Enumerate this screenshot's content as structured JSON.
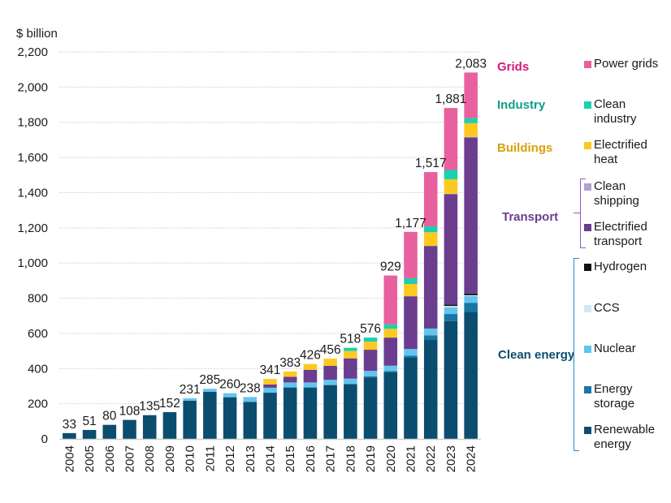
{
  "chart_data": {
    "type": "bar",
    "stacked": true,
    "title": "",
    "ylabel": "$ billion",
    "xlabel": "",
    "ylim": [
      0,
      2200
    ],
    "yticks": [
      0,
      200,
      400,
      600,
      800,
      1000,
      1200,
      1400,
      1600,
      1800,
      2000,
      2200
    ],
    "ytick_labels": [
      "0",
      "200",
      "400",
      "600",
      "800",
      "1,000",
      "1,200",
      "1,400",
      "1,600",
      "1,800",
      "2,000",
      "2,200"
    ],
    "grid": true,
    "legend_position": "right",
    "categories": [
      "2004",
      "2005",
      "2006",
      "2007",
      "2008",
      "2009",
      "2010",
      "2011",
      "2012",
      "2013",
      "2014",
      "2015",
      "2016",
      "2017",
      "2018",
      "2019",
      "2020",
      "2021",
      "2022",
      "2023",
      "2024"
    ],
    "totals": [
      33,
      51,
      80,
      108,
      135,
      152,
      231,
      285,
      260,
      238,
      341,
      383,
      426,
      456,
      518,
      576,
      929,
      1177,
      1517,
      1881,
      2083
    ],
    "total_labels": [
      "33",
      "51",
      "80",
      "108",
      "135",
      "152",
      "231",
      "285",
      "260",
      "238",
      "341",
      "383",
      "426",
      "456",
      "518",
      "576",
      "929",
      "1,177",
      "1,517",
      "1,881",
      "2,083"
    ],
    "series": [
      {
        "name": "Renewable energy",
        "group": "Clean energy",
        "color": "#0b4d6e",
        "values": [
          33,
          51,
          80,
          108,
          135,
          152,
          217,
          268,
          237,
          210,
          263,
          291,
          291,
          305,
          309,
          350,
          378,
          463,
          566,
          670,
          722
        ]
      },
      {
        "name": "Energy storage",
        "group": "Clean energy",
        "color": "#1478a3",
        "values": [
          0,
          0,
          0,
          0,
          0,
          0,
          0,
          0,
          0,
          0,
          1,
          2,
          2,
          3,
          4,
          5,
          8,
          10,
          22,
          40,
          52
        ]
      },
      {
        "name": "Nuclear",
        "group": "Clean energy",
        "color": "#63c5ef",
        "values": [
          0,
          0,
          0,
          0,
          0,
          0,
          14,
          17,
          23,
          28,
          27,
          28,
          28,
          28,
          30,
          32,
          30,
          38,
          40,
          38,
          38
        ]
      },
      {
        "name": "CCS",
        "group": "Clean energy",
        "color": "#cde9f7",
        "values": [
          0,
          0,
          0,
          0,
          0,
          0,
          0,
          0,
          0,
          0,
          0,
          0,
          0,
          0,
          0,
          0,
          0,
          0,
          0,
          8,
          5
        ]
      },
      {
        "name": "Hydrogen",
        "group": "Clean energy",
        "color": "#111111",
        "values": [
          0,
          0,
          0,
          0,
          0,
          0,
          0,
          0,
          0,
          0,
          0,
          0,
          0,
          0,
          0,
          0,
          0,
          0,
          3,
          8,
          9
        ]
      },
      {
        "name": "Electrified transport",
        "group": "Transport",
        "color": "#6a3d8f",
        "values": [
          0,
          0,
          0,
          0,
          0,
          0,
          0,
          0,
          0,
          0,
          18,
          32,
          72,
          79,
          115,
          120,
          160,
          300,
          466,
          628,
          888
        ]
      },
      {
        "name": "Clean shipping",
        "group": "Transport",
        "color": "#b59fd6",
        "values": [
          0,
          0,
          0,
          0,
          0,
          0,
          0,
          0,
          0,
          0,
          0,
          0,
          0,
          0,
          0,
          0,
          0,
          0,
          0,
          2,
          3
        ]
      },
      {
        "name": "Electrified heat",
        "group": "Buildings",
        "color": "#fcc920",
        "values": [
          0,
          0,
          0,
          0,
          0,
          0,
          0,
          0,
          0,
          0,
          32,
          30,
          33,
          41,
          42,
          46,
          50,
          70,
          78,
          82,
          78
        ]
      },
      {
        "name": "Clean industry",
        "group": "Industry",
        "color": "#19d0b0",
        "values": [
          0,
          0,
          0,
          0,
          0,
          0,
          0,
          0,
          0,
          0,
          0,
          0,
          0,
          0,
          18,
          23,
          25,
          32,
          33,
          53,
          28
        ]
      },
      {
        "name": "Power grids",
        "group": "Grids",
        "color": "#e9609f",
        "values": [
          0,
          0,
          0,
          0,
          0,
          0,
          0,
          0,
          0,
          0,
          0,
          0,
          0,
          0,
          0,
          0,
          278,
          264,
          309,
          352,
          260
        ]
      }
    ]
  },
  "legend": {
    "groups": [
      {
        "title": "Grids",
        "color": "#d6187a"
      },
      {
        "title": "Industry",
        "color": "#0f9e87"
      },
      {
        "title": "Buildings",
        "color": "#d9a10c"
      },
      {
        "title": "Transport",
        "color": "#6a3d8f"
      },
      {
        "title": "Clean energy",
        "color": "#0b4d6e"
      }
    ],
    "items": [
      {
        "label": "Power grids",
        "color": "#e9609f"
      },
      {
        "label": "Clean industry",
        "color": "#19d0b0"
      },
      {
        "label": "Electrified heat",
        "color": "#fcc920"
      },
      {
        "label": "Clean shipping",
        "color": "#b59fd6"
      },
      {
        "label": "Electrified transport",
        "color": "#6a3d8f"
      },
      {
        "label": "Hydrogen",
        "color": "#111111"
      },
      {
        "label": "CCS",
        "color": "#cde9f7"
      },
      {
        "label": "Nuclear",
        "color": "#63c5ef"
      },
      {
        "label": "Energy storage",
        "color": "#1478a3"
      },
      {
        "label": "Renewable energy",
        "color": "#0b4d6e"
      }
    ],
    "bracket_colors": {
      "transport": "#8a5cc0",
      "clean_energy": "#1a8fd6"
    }
  }
}
